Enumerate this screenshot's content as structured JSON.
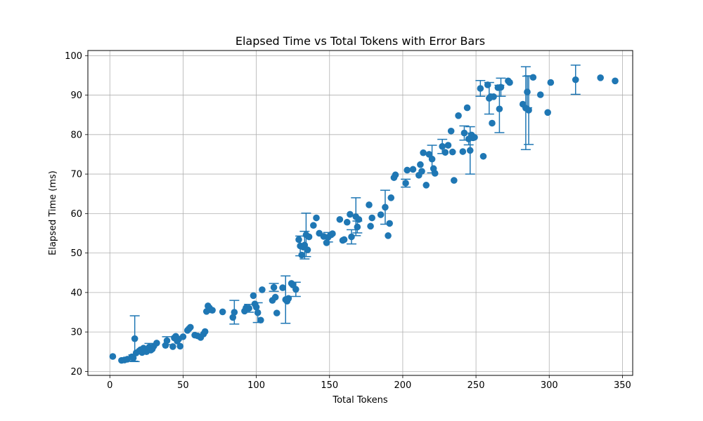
{
  "chart_data": {
    "type": "scatter",
    "title": "Elapsed Time vs Total Tokens with Error Bars",
    "xlabel": "Total Tokens",
    "ylabel": "Elapsed Time (ms)",
    "xlim": [
      -15,
      357
    ],
    "ylim": [
      19,
      101.3
    ],
    "xticks": [
      "0",
      "50",
      "100",
      "150",
      "200",
      "250",
      "300",
      "350"
    ],
    "yticks": [
      "20",
      "30",
      "40",
      "50",
      "60",
      "70",
      "80",
      "90",
      "100"
    ],
    "xtick_values": [
      0,
      50,
      100,
      150,
      200,
      250,
      300,
      350
    ],
    "ytick_values": [
      20,
      30,
      40,
      50,
      60,
      70,
      80,
      90,
      100
    ],
    "grid": true,
    "legend": "none",
    "point_color": "#1f77b4",
    "points": [
      {
        "x": 2,
        "y": 23.8
      },
      {
        "x": 8,
        "y": 22.8
      },
      {
        "x": 10,
        "y": 22.9
      },
      {
        "x": 12,
        "y": 23.1
      },
      {
        "x": 15,
        "y": 23.7
      },
      {
        "x": 16,
        "y": 23.4,
        "err": 0.8
      },
      {
        "x": 17,
        "y": 28.3,
        "err": 5.8
      },
      {
        "x": 18,
        "y": 24.7
      },
      {
        "x": 20,
        "y": 25.2
      },
      {
        "x": 21,
        "y": 25.5
      },
      {
        "x": 22,
        "y": 24.8
      },
      {
        "x": 23,
        "y": 25.9
      },
      {
        "x": 24,
        "y": 25.3
      },
      {
        "x": 25,
        "y": 25.0
      },
      {
        "x": 27,
        "y": 26.2,
        "err": 0.9
      },
      {
        "x": 28,
        "y": 25.4
      },
      {
        "x": 29,
        "y": 25.7
      },
      {
        "x": 30,
        "y": 26.4
      },
      {
        "x": 32,
        "y": 27.2
      },
      {
        "x": 38,
        "y": 26.6
      },
      {
        "x": 39,
        "y": 27.8,
        "err": 1.0
      },
      {
        "x": 43,
        "y": 26.3
      },
      {
        "x": 44,
        "y": 28.5
      },
      {
        "x": 45,
        "y": 28.9
      },
      {
        "x": 46,
        "y": 27.7
      },
      {
        "x": 47,
        "y": 28.2
      },
      {
        "x": 48,
        "y": 26.4
      },
      {
        "x": 50,
        "y": 28.8
      },
      {
        "x": 53,
        "y": 30.4
      },
      {
        "x": 54,
        "y": 30.8
      },
      {
        "x": 55,
        "y": 31.2
      },
      {
        "x": 58,
        "y": 29.2
      },
      {
        "x": 60,
        "y": 29.0
      },
      {
        "x": 62,
        "y": 28.6
      },
      {
        "x": 64,
        "y": 29.5
      },
      {
        "x": 65,
        "y": 30.1
      },
      {
        "x": 66,
        "y": 35.2
      },
      {
        "x": 67,
        "y": 36.6
      },
      {
        "x": 68,
        "y": 36.1
      },
      {
        "x": 69,
        "y": 35.6
      },
      {
        "x": 70,
        "y": 35.5
      },
      {
        "x": 77,
        "y": 35.1
      },
      {
        "x": 84,
        "y": 33.7
      },
      {
        "x": 85,
        "y": 35.0,
        "err": 3.0
      },
      {
        "x": 92,
        "y": 35.3
      },
      {
        "x": 93,
        "y": 36.1
      },
      {
        "x": 95,
        "y": 36.0,
        "err": 1.0
      },
      {
        "x": 98,
        "y": 39.2
      },
      {
        "x": 99,
        "y": 37.1
      },
      {
        "x": 100,
        "y": 36.3
      },
      {
        "x": 101,
        "y": 34.9,
        "err": 2.5
      },
      {
        "x": 103,
        "y": 33.0
      },
      {
        "x": 104,
        "y": 40.7
      },
      {
        "x": 111,
        "y": 38.0
      },
      {
        "x": 112,
        "y": 41.3,
        "err": 1.0
      },
      {
        "x": 113,
        "y": 38.8
      },
      {
        "x": 114,
        "y": 34.8
      },
      {
        "x": 118,
        "y": 41.2
      },
      {
        "x": 120,
        "y": 38.2,
        "err": 6.0
      },
      {
        "x": 121,
        "y": 37.8
      },
      {
        "x": 122,
        "y": 38.5
      },
      {
        "x": 124,
        "y": 42.3
      },
      {
        "x": 125,
        "y": 41.9
      },
      {
        "x": 127,
        "y": 40.8,
        "err": 1.8
      },
      {
        "x": 129,
        "y": 53.4
      },
      {
        "x": 130,
        "y": 51.8,
        "err": 2.5
      },
      {
        "x": 131,
        "y": 49.5
      },
      {
        "x": 132,
        "y": 51.5
      },
      {
        "x": 133,
        "y": 52.0,
        "err": 3.5
      },
      {
        "x": 134,
        "y": 54.6,
        "err": 5.5
      },
      {
        "x": 135,
        "y": 50.8
      },
      {
        "x": 136,
        "y": 54.1
      },
      {
        "x": 139,
        "y": 57.0
      },
      {
        "x": 141,
        "y": 58.9
      },
      {
        "x": 143,
        "y": 55.0
      },
      {
        "x": 146,
        "y": 54.2
      },
      {
        "x": 148,
        "y": 52.6
      },
      {
        "x": 149,
        "y": 54.0,
        "err": 1.2
      },
      {
        "x": 151,
        "y": 54.6
      },
      {
        "x": 152,
        "y": 54.9
      },
      {
        "x": 157,
        "y": 58.5
      },
      {
        "x": 159,
        "y": 53.2
      },
      {
        "x": 160,
        "y": 53.4
      },
      {
        "x": 162,
        "y": 57.8
      },
      {
        "x": 164,
        "y": 59.8
      },
      {
        "x": 165,
        "y": 54.1,
        "err": 1.8
      },
      {
        "x": 168,
        "y": 59.2,
        "err": 4.8
      },
      {
        "x": 169,
        "y": 56.6,
        "err": 1.5
      },
      {
        "x": 170,
        "y": 58.5
      },
      {
        "x": 177,
        "y": 62.2
      },
      {
        "x": 178,
        "y": 56.8
      },
      {
        "x": 179,
        "y": 58.9
      },
      {
        "x": 185,
        "y": 59.7
      },
      {
        "x": 188,
        "y": 61.6,
        "err": 4.3
      },
      {
        "x": 190,
        "y": 54.4
      },
      {
        "x": 191,
        "y": 57.5
      },
      {
        "x": 192,
        "y": 64.0
      },
      {
        "x": 194,
        "y": 69.1
      },
      {
        "x": 195,
        "y": 69.8
      },
      {
        "x": 202,
        "y": 67.7,
        "err": 1.0
      },
      {
        "x": 203,
        "y": 71.0
      },
      {
        "x": 207,
        "y": 71.2
      },
      {
        "x": 211,
        "y": 69.7
      },
      {
        "x": 212,
        "y": 72.4
      },
      {
        "x": 213,
        "y": 70.7
      },
      {
        "x": 214,
        "y": 75.4
      },
      {
        "x": 216,
        "y": 67.2
      },
      {
        "x": 218,
        "y": 75.0
      },
      {
        "x": 220,
        "y": 73.8,
        "err": 3.5
      },
      {
        "x": 221,
        "y": 71.4
      },
      {
        "x": 222,
        "y": 70.2
      },
      {
        "x": 227,
        "y": 77.0,
        "err": 1.8
      },
      {
        "x": 229,
        "y": 75.5
      },
      {
        "x": 231,
        "y": 77.3
      },
      {
        "x": 233,
        "y": 80.9
      },
      {
        "x": 234,
        "y": 75.6
      },
      {
        "x": 235,
        "y": 68.4
      },
      {
        "x": 238,
        "y": 84.8
      },
      {
        "x": 241,
        "y": 75.7
      },
      {
        "x": 242,
        "y": 80.4,
        "err": 1.8
      },
      {
        "x": 244,
        "y": 86.8
      },
      {
        "x": 245,
        "y": 78.9,
        "err": 1.5
      },
      {
        "x": 246,
        "y": 76.0,
        "err": 6.0
      },
      {
        "x": 247,
        "y": 79.9
      },
      {
        "x": 248,
        "y": 79.2
      },
      {
        "x": 249,
        "y": 79.3
      },
      {
        "x": 253,
        "y": 91.7,
        "err": 2.0
      },
      {
        "x": 255,
        "y": 74.5
      },
      {
        "x": 258,
        "y": 92.6
      },
      {
        "x": 259,
        "y": 89.2,
        "err": 4.0
      },
      {
        "x": 260,
        "y": 89.6
      },
      {
        "x": 261,
        "y": 82.9
      },
      {
        "x": 262,
        "y": 89.6
      },
      {
        "x": 265,
        "y": 91.9
      },
      {
        "x": 266,
        "y": 86.5,
        "err": 6.0
      },
      {
        "x": 267,
        "y": 92.0,
        "err": 2.3
      },
      {
        "x": 272,
        "y": 93.6
      },
      {
        "x": 273,
        "y": 93.2
      },
      {
        "x": 282,
        "y": 87.7
      },
      {
        "x": 284,
        "y": 86.7,
        "err": 10.5
      },
      {
        "x": 285,
        "y": 90.8,
        "err": 4.0
      },
      {
        "x": 286,
        "y": 86.2,
        "err": 8.7
      },
      {
        "x": 289,
        "y": 94.5
      },
      {
        "x": 294,
        "y": 90.1
      },
      {
        "x": 299,
        "y": 85.6
      },
      {
        "x": 301,
        "y": 93.2
      },
      {
        "x": 318,
        "y": 93.9,
        "err": 3.7
      },
      {
        "x": 335,
        "y": 94.4
      },
      {
        "x": 345,
        "y": 93.6
      }
    ]
  }
}
